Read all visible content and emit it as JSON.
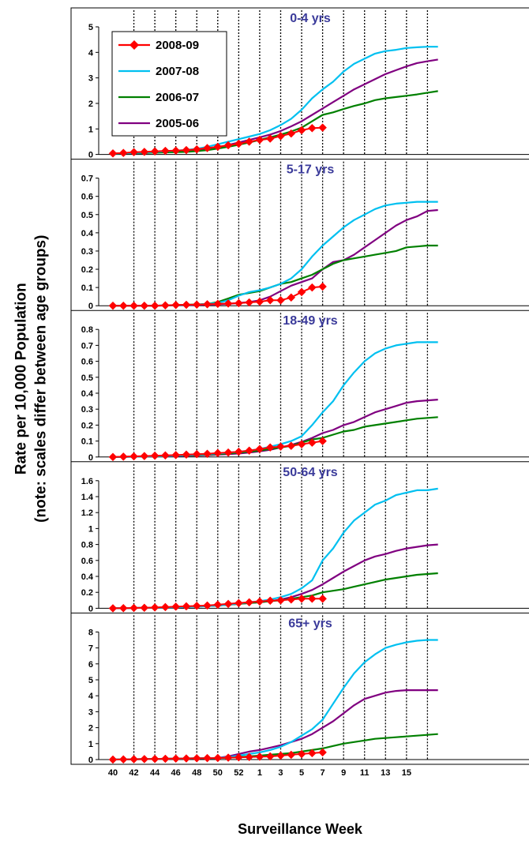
{
  "figure": {
    "ylabel_line1": "Rate per 10,000 Population",
    "ylabel_line2": "(note: scales differ between age groups)",
    "xlabel": "Surveillance Week",
    "x_ticks": [
      "40",
      "42",
      "44",
      "46",
      "48",
      "50",
      "52",
      "1",
      "3",
      "5",
      "7",
      "9",
      "11",
      "13",
      "15"
    ],
    "legend": [
      {
        "name": "2008-09",
        "color": "#ff0000",
        "marker": "diamond"
      },
      {
        "name": "2007-08",
        "color": "#00c0f0",
        "marker": "none"
      },
      {
        "name": "2006-07",
        "color": "#008000",
        "marker": "none"
      },
      {
        "name": "2005-06",
        "color": "#800080",
        "marker": "none"
      }
    ],
    "title_color": "#3a3a9a"
  },
  "chart_data": [
    {
      "type": "line",
      "title": "0-4 yrs",
      "ylim": [
        0,
        5
      ],
      "yticks": [
        0,
        1,
        2,
        3,
        4,
        5
      ],
      "series": [
        {
          "name": "2008-09",
          "values": [
            0.04,
            0.06,
            0.09,
            0.1,
            0.12,
            0.14,
            0.15,
            0.17,
            0.2,
            0.25,
            0.3,
            0.36,
            0.42,
            0.5,
            0.57,
            0.62,
            0.72,
            0.82,
            0.95,
            1.03,
            1.05
          ]
        },
        {
          "name": "2007-08",
          "values": [
            0.04,
            0.05,
            0.06,
            0.08,
            0.1,
            0.12,
            0.15,
            0.18,
            0.22,
            0.3,
            0.4,
            0.5,
            0.6,
            0.7,
            0.8,
            0.95,
            1.15,
            1.4,
            1.75,
            2.2,
            2.55,
            2.85,
            3.25,
            3.55,
            3.75,
            3.95,
            4.05,
            4.1,
            4.17,
            4.2,
            4.22,
            4.22
          ]
        },
        {
          "name": "2006-07",
          "values": [
            0.03,
            0.04,
            0.05,
            0.06,
            0.07,
            0.08,
            0.09,
            0.1,
            0.13,
            0.17,
            0.23,
            0.3,
            0.38,
            0.47,
            0.57,
            0.67,
            0.78,
            0.9,
            1.05,
            1.3,
            1.55,
            1.65,
            1.78,
            1.9,
            2.0,
            2.13,
            2.2,
            2.25,
            2.3,
            2.35,
            2.42,
            2.48
          ]
        },
        {
          "name": "2005-06",
          "values": [
            0.03,
            0.04,
            0.05,
            0.06,
            0.07,
            0.09,
            0.1,
            0.12,
            0.15,
            0.2,
            0.28,
            0.37,
            0.47,
            0.57,
            0.67,
            0.78,
            0.92,
            1.1,
            1.3,
            1.55,
            1.8,
            2.05,
            2.3,
            2.55,
            2.75,
            2.95,
            3.15,
            3.3,
            3.45,
            3.58,
            3.65,
            3.72
          ]
        }
      ]
    },
    {
      "type": "line",
      "title": "5-17 yrs",
      "ylim": [
        0,
        0.7
      ],
      "yticks": [
        0,
        0.1,
        0.2,
        0.3,
        0.4,
        0.5,
        0.6,
        0.7
      ],
      "series": [
        {
          "name": "2008-09",
          "values": [
            0,
            0,
            0,
            0,
            0,
            0.002,
            0.004,
            0.005,
            0.006,
            0.008,
            0.01,
            0.012,
            0.014,
            0.018,
            0.022,
            0.03,
            0.03,
            0.045,
            0.075,
            0.1,
            0.105
          ]
        },
        {
          "name": "2007-08",
          "values": [
            0,
            0,
            0,
            0,
            0,
            0.002,
            0.003,
            0.004,
            0.006,
            0.01,
            0.015,
            0.03,
            0.055,
            0.075,
            0.085,
            0.1,
            0.12,
            0.15,
            0.2,
            0.27,
            0.33,
            0.38,
            0.43,
            0.47,
            0.5,
            0.53,
            0.55,
            0.56,
            0.565,
            0.57,
            0.57,
            0.57
          ]
        },
        {
          "name": "2006-07",
          "values": [
            0,
            0,
            0,
            0,
            0,
            0.002,
            0.003,
            0.005,
            0.007,
            0.01,
            0.02,
            0.04,
            0.06,
            0.07,
            0.08,
            0.1,
            0.12,
            0.13,
            0.15,
            0.17,
            0.2,
            0.23,
            0.25,
            0.26,
            0.27,
            0.28,
            0.29,
            0.3,
            0.32,
            0.325,
            0.33,
            0.33
          ]
        },
        {
          "name": "2005-06",
          "values": [
            0,
            0,
            0,
            0,
            0,
            0.001,
            0.002,
            0.003,
            0.004,
            0.006,
            0.008,
            0.01,
            0.015,
            0.02,
            0.03,
            0.05,
            0.08,
            0.11,
            0.13,
            0.15,
            0.2,
            0.24,
            0.25,
            0.28,
            0.32,
            0.36,
            0.4,
            0.44,
            0.47,
            0.49,
            0.52,
            0.525
          ]
        }
      ]
    },
    {
      "type": "line",
      "title": "18-49 yrs",
      "ylim": [
        0,
        0.8
      ],
      "yticks": [
        0,
        0.1,
        0.2,
        0.3,
        0.4,
        0.5,
        0.6,
        0.7,
        0.8
      ],
      "series": [
        {
          "name": "2008-09",
          "values": [
            0,
            0.002,
            0.004,
            0.006,
            0.008,
            0.01,
            0.012,
            0.015,
            0.018,
            0.02,
            0.025,
            0.028,
            0.033,
            0.04,
            0.05,
            0.06,
            0.065,
            0.07,
            0.08,
            0.09,
            0.1
          ]
        },
        {
          "name": "2007-08",
          "values": [
            0,
            0.001,
            0.002,
            0.003,
            0.005,
            0.007,
            0.009,
            0.012,
            0.015,
            0.018,
            0.022,
            0.027,
            0.033,
            0.04,
            0.05,
            0.065,
            0.08,
            0.1,
            0.13,
            0.2,
            0.28,
            0.35,
            0.45,
            0.53,
            0.6,
            0.65,
            0.68,
            0.7,
            0.71,
            0.72,
            0.72,
            0.72
          ]
        },
        {
          "name": "2006-07",
          "values": [
            0,
            0.001,
            0.002,
            0.003,
            0.004,
            0.006,
            0.008,
            0.01,
            0.012,
            0.015,
            0.018,
            0.022,
            0.027,
            0.033,
            0.04,
            0.05,
            0.06,
            0.07,
            0.09,
            0.11,
            0.12,
            0.14,
            0.16,
            0.17,
            0.19,
            0.2,
            0.21,
            0.22,
            0.23,
            0.24,
            0.245,
            0.25
          ]
        },
        {
          "name": "2005-06",
          "values": [
            0,
            0.001,
            0.002,
            0.003,
            0.004,
            0.005,
            0.006,
            0.008,
            0.01,
            0.012,
            0.015,
            0.018,
            0.022,
            0.028,
            0.035,
            0.045,
            0.06,
            0.075,
            0.095,
            0.12,
            0.15,
            0.17,
            0.2,
            0.22,
            0.25,
            0.28,
            0.3,
            0.32,
            0.34,
            0.35,
            0.355,
            0.36
          ]
        }
      ]
    },
    {
      "type": "line",
      "title": "50-64 yrs",
      "ylim": [
        0,
        1.6
      ],
      "yticks": [
        0,
        0.2,
        0.4,
        0.6,
        0.8,
        1,
        1.2,
        1.4,
        1.6
      ],
      "series": [
        {
          "name": "2008-09",
          "values": [
            0,
            0.002,
            0.004,
            0.006,
            0.01,
            0.015,
            0.02,
            0.025,
            0.03,
            0.035,
            0.045,
            0.055,
            0.065,
            0.075,
            0.085,
            0.095,
            0.1,
            0.11,
            0.12,
            0.12,
            0.12
          ]
        },
        {
          "name": "2007-08",
          "values": [
            0,
            0.002,
            0.004,
            0.006,
            0.008,
            0.01,
            0.013,
            0.017,
            0.022,
            0.028,
            0.035,
            0.045,
            0.06,
            0.075,
            0.09,
            0.11,
            0.14,
            0.18,
            0.25,
            0.35,
            0.6,
            0.75,
            0.95,
            1.1,
            1.2,
            1.3,
            1.35,
            1.42,
            1.45,
            1.48,
            1.48,
            1.5
          ]
        },
        {
          "name": "2006-07",
          "values": [
            0,
            0.002,
            0.004,
            0.006,
            0.008,
            0.01,
            0.013,
            0.017,
            0.022,
            0.028,
            0.035,
            0.045,
            0.055,
            0.065,
            0.075,
            0.09,
            0.1,
            0.12,
            0.14,
            0.16,
            0.2,
            0.22,
            0.24,
            0.27,
            0.3,
            0.33,
            0.36,
            0.38,
            0.4,
            0.42,
            0.43,
            0.44
          ]
        },
        {
          "name": "2005-06",
          "values": [
            0,
            0.002,
            0.004,
            0.006,
            0.008,
            0.01,
            0.013,
            0.017,
            0.022,
            0.028,
            0.035,
            0.045,
            0.055,
            0.065,
            0.075,
            0.09,
            0.11,
            0.14,
            0.18,
            0.23,
            0.3,
            0.38,
            0.46,
            0.53,
            0.6,
            0.65,
            0.68,
            0.72,
            0.75,
            0.77,
            0.79,
            0.8
          ]
        }
      ]
    },
    {
      "type": "line",
      "title": "65+ yrs",
      "ylim": [
        0,
        8
      ],
      "yticks": [
        0,
        1,
        2,
        3,
        4,
        5,
        6,
        7,
        8
      ],
      "series": [
        {
          "name": "2008-09",
          "values": [
            0,
            0.01,
            0.02,
            0.03,
            0.04,
            0.05,
            0.06,
            0.07,
            0.08,
            0.09,
            0.1,
            0.12,
            0.14,
            0.16,
            0.18,
            0.2,
            0.25,
            0.3,
            0.35,
            0.4,
            0.45
          ]
        },
        {
          "name": "2007-08",
          "values": [
            0,
            0.01,
            0.02,
            0.03,
            0.04,
            0.05,
            0.06,
            0.07,
            0.08,
            0.09,
            0.1,
            0.15,
            0.25,
            0.35,
            0.45,
            0.6,
            0.8,
            1.1,
            1.5,
            1.9,
            2.5,
            3.5,
            4.5,
            5.4,
            6.1,
            6.6,
            7.0,
            7.2,
            7.35,
            7.45,
            7.5,
            7.5
          ]
        },
        {
          "name": "2006-07",
          "values": [
            0,
            0.01,
            0.02,
            0.03,
            0.04,
            0.05,
            0.06,
            0.07,
            0.08,
            0.09,
            0.1,
            0.12,
            0.15,
            0.2,
            0.25,
            0.3,
            0.35,
            0.4,
            0.5,
            0.6,
            0.7,
            0.85,
            1.0,
            1.1,
            1.2,
            1.3,
            1.35,
            1.4,
            1.45,
            1.5,
            1.55,
            1.6
          ]
        },
        {
          "name": "2005-06",
          "values": [
            0,
            0.01,
            0.02,
            0.03,
            0.04,
            0.05,
            0.06,
            0.07,
            0.08,
            0.09,
            0.1,
            0.2,
            0.35,
            0.5,
            0.6,
            0.75,
            0.9,
            1.1,
            1.3,
            1.6,
            2.0,
            2.4,
            2.9,
            3.4,
            3.8,
            4.0,
            4.2,
            4.3,
            4.35,
            4.35,
            4.35,
            4.35
          ]
        }
      ]
    }
  ]
}
